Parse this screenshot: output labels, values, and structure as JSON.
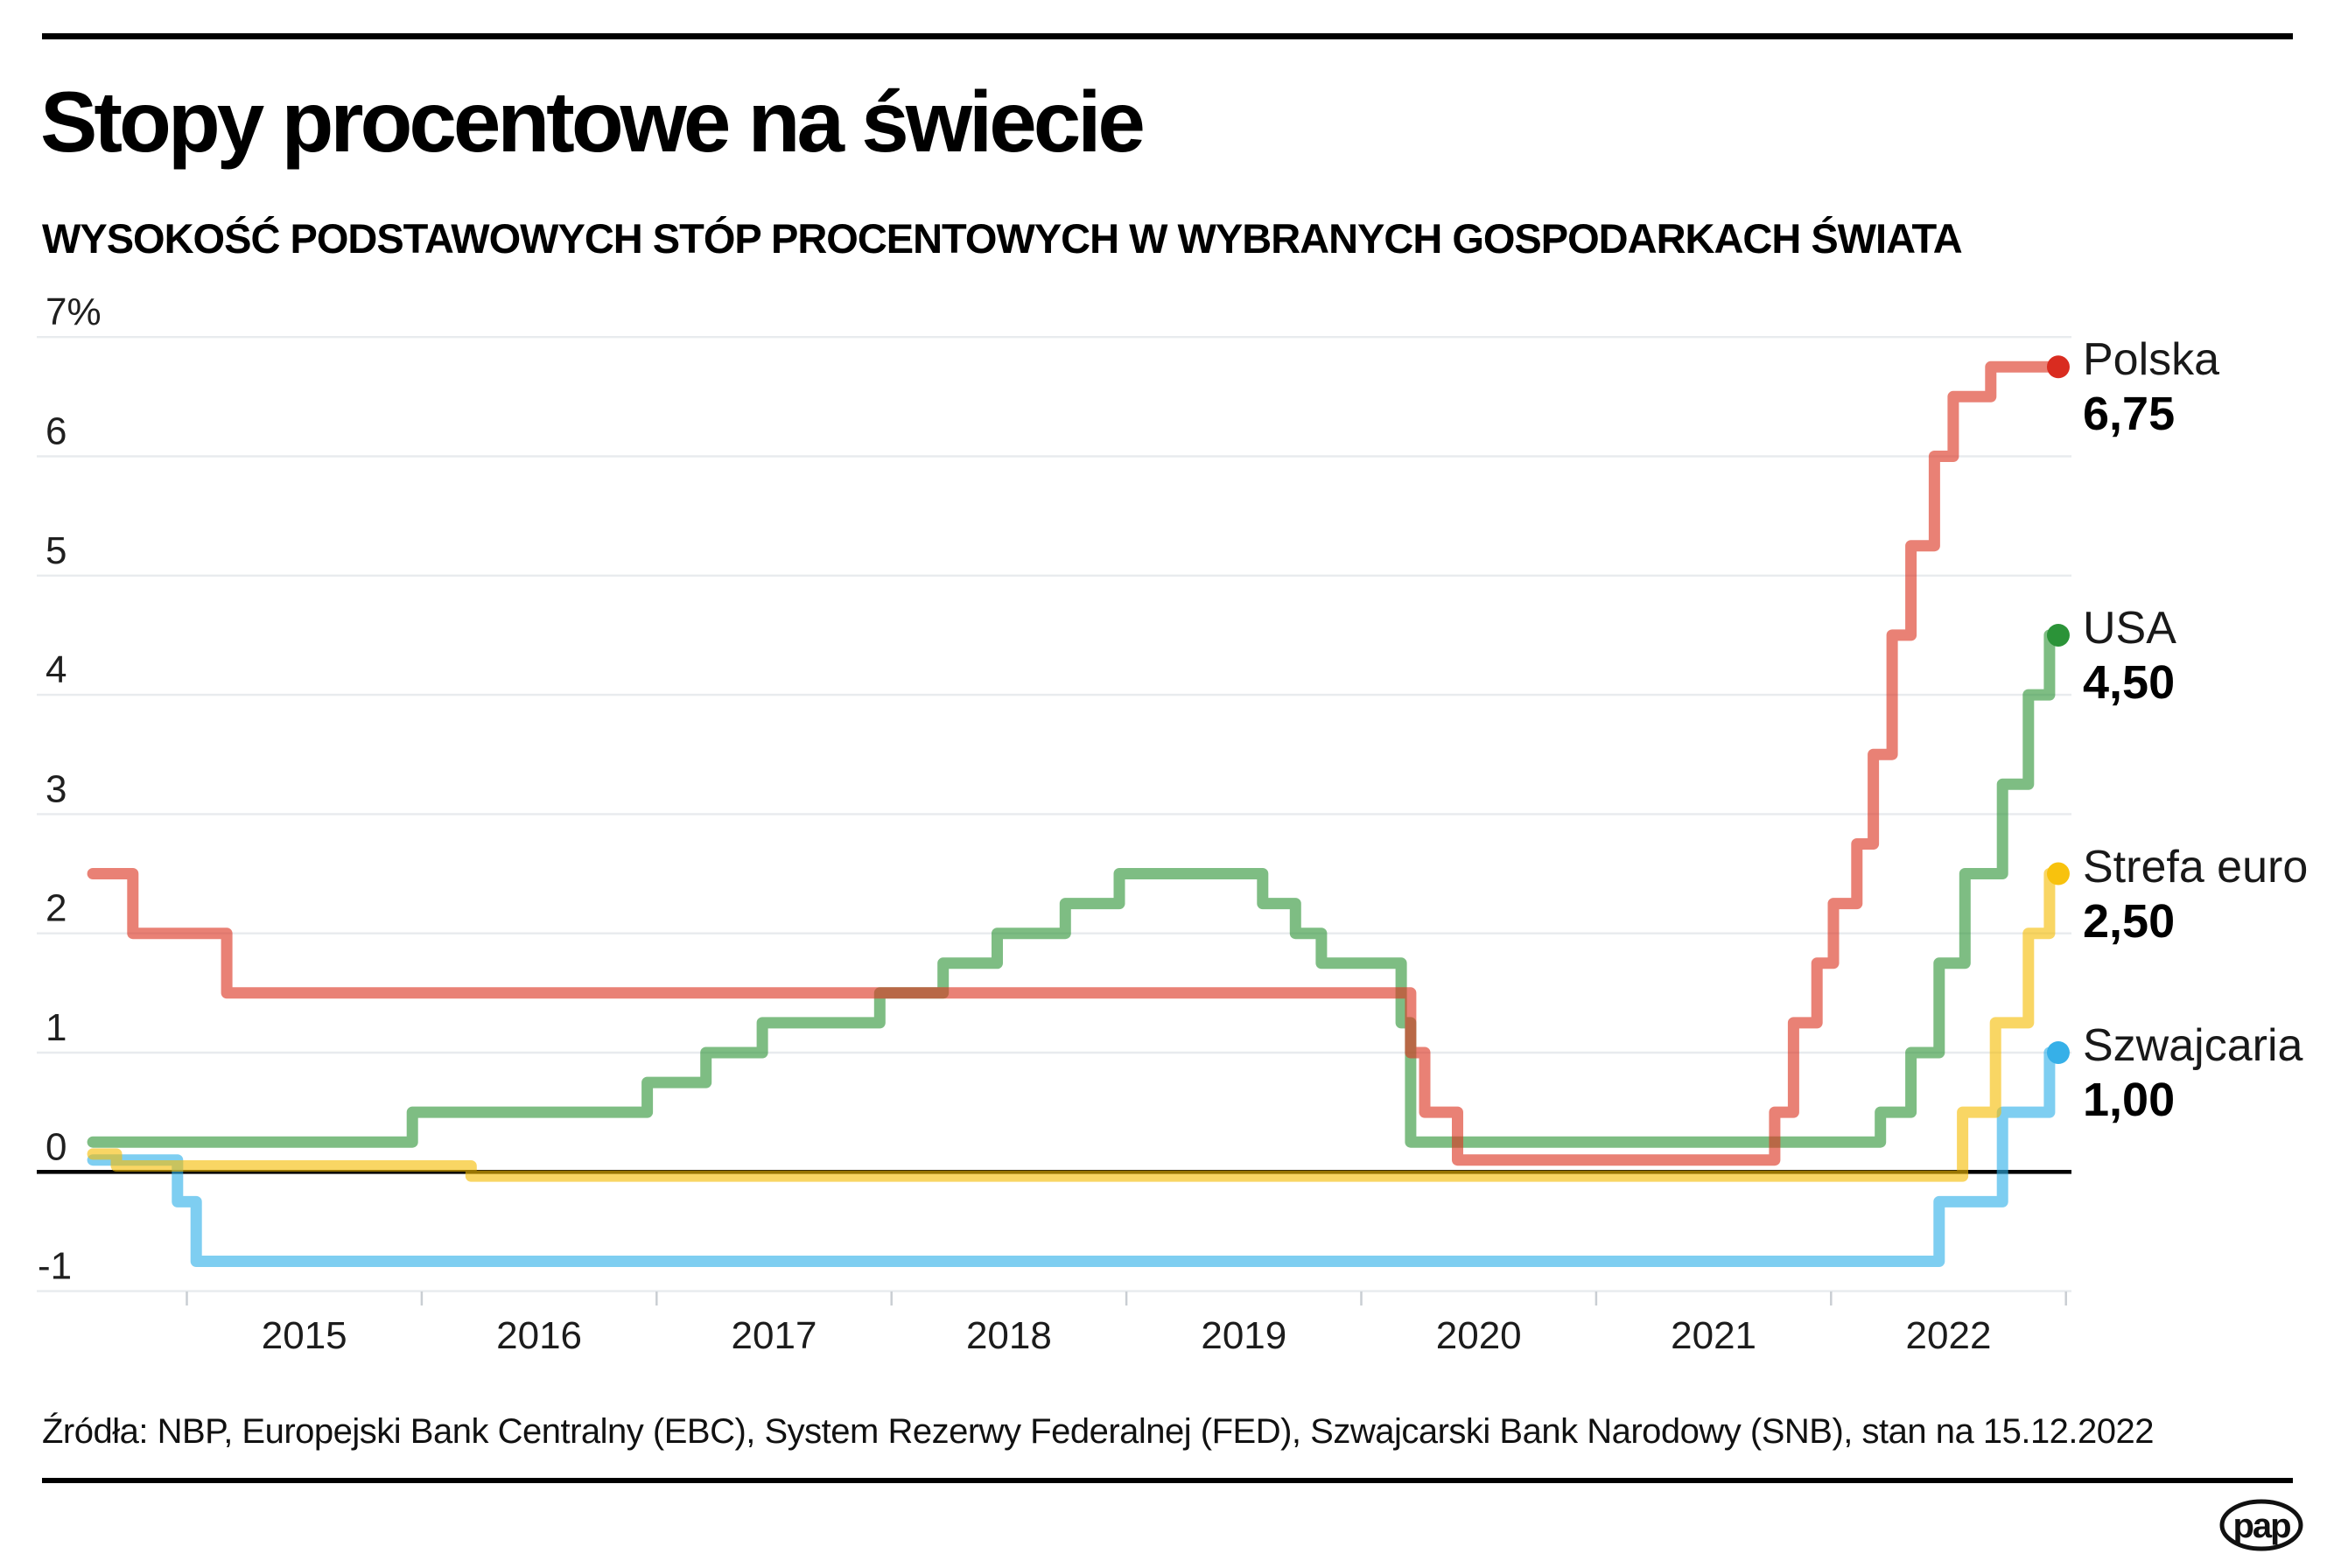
{
  "header": {
    "title": "Stopy procentowe na świecie",
    "subtitle": "WYSOKOŚĆ PODSTAWOWYCH STÓP PROCENTOWYCH W WYBRANYCH GOSPODARKACH ŚWIATA"
  },
  "chart_data": {
    "type": "line",
    "step": true,
    "title": "Stopy procentowe na świecie",
    "xlabel": "",
    "ylabel": "%",
    "x_range": [
      2014.6,
      2023.0
    ],
    "y_range": [
      -1,
      7
    ],
    "grid": true,
    "legend_position": "right",
    "as_of": "15.12.2022",
    "x_axis": {
      "year_labels": [
        "2015",
        "2016",
        "2017",
        "2018",
        "2019",
        "2020",
        "2021",
        "2022"
      ]
    },
    "y_axis": {
      "ticks": [
        {
          "value": 7,
          "label": "7%"
        },
        {
          "value": 6,
          "label": "6"
        },
        {
          "value": 5,
          "label": "5"
        },
        {
          "value": 4,
          "label": "4"
        },
        {
          "value": 3,
          "label": "3"
        },
        {
          "value": 2,
          "label": "2"
        },
        {
          "value": 1,
          "label": "1"
        },
        {
          "value": 0,
          "label": "0"
        },
        {
          "value": -1,
          "label": "-1"
        }
      ]
    },
    "t_end": 2022.96,
    "series": [
      {
        "id": "polska",
        "label": "Polska",
        "value_label": "6,75",
        "final_value": 6.75,
        "line_color": "#dc3420",
        "dot_color": "#d92c20",
        "points": [
          [
            2014.6,
            2.5
          ],
          [
            2014.77,
            2.0
          ],
          [
            2015.17,
            1.5
          ],
          [
            2020.21,
            1.0
          ],
          [
            2020.27,
            0.5
          ],
          [
            2020.41,
            0.1
          ],
          [
            2021.76,
            0.5
          ],
          [
            2021.84,
            1.25
          ],
          [
            2021.94,
            1.75
          ],
          [
            2022.01,
            2.25
          ],
          [
            2022.11,
            2.75
          ],
          [
            2022.18,
            3.5
          ],
          [
            2022.26,
            4.5
          ],
          [
            2022.34,
            5.25
          ],
          [
            2022.44,
            6.0
          ],
          [
            2022.52,
            6.5
          ],
          [
            2022.68,
            6.75
          ]
        ]
      },
      {
        "id": "usa",
        "label": "USA",
        "value_label": "4,50",
        "final_value": 4.5,
        "line_color": "#2e9437",
        "dot_color": "#2b9338",
        "points": [
          [
            2014.6,
            0.25
          ],
          [
            2015.96,
            0.5
          ],
          [
            2016.96,
            0.75
          ],
          [
            2017.21,
            1.0
          ],
          [
            2017.45,
            1.25
          ],
          [
            2017.95,
            1.5
          ],
          [
            2018.22,
            1.75
          ],
          [
            2018.45,
            2.0
          ],
          [
            2018.74,
            2.25
          ],
          [
            2018.97,
            2.5
          ],
          [
            2019.58,
            2.25
          ],
          [
            2019.72,
            2.0
          ],
          [
            2019.83,
            1.75
          ],
          [
            2020.17,
            1.25
          ],
          [
            2020.21,
            0.25
          ],
          [
            2022.21,
            0.5
          ],
          [
            2022.34,
            1.0
          ],
          [
            2022.46,
            1.75
          ],
          [
            2022.57,
            2.5
          ],
          [
            2022.73,
            3.25
          ],
          [
            2022.84,
            4.0
          ],
          [
            2022.93,
            4.5
          ]
        ]
      },
      {
        "id": "strefa-euro",
        "label": "Strefa euro",
        "value_label": "2,50",
        "final_value": 2.5,
        "line_color": "#f5bd05",
        "dot_color": "#f8c20d",
        "points": [
          [
            2014.6,
            0.15
          ],
          [
            2014.7,
            0.05
          ],
          [
            2016.21,
            0.0
          ],
          [
            2022.56,
            0.5
          ],
          [
            2022.7,
            1.25
          ],
          [
            2022.84,
            2.0
          ],
          [
            2022.93,
            2.5
          ]
        ]
      },
      {
        "id": "szwajcaria",
        "label": "Szwajcaria",
        "value_label": "1,00",
        "final_value": 1.0,
        "line_color": "#2fb0e8",
        "dot_color": "#36b0e8",
        "points": [
          [
            2014.6,
            0.1
          ],
          [
            2014.96,
            -0.25
          ],
          [
            2015.04,
            -0.75
          ],
          [
            2022.46,
            -0.25
          ],
          [
            2022.73,
            0.5
          ],
          [
            2022.93,
            1.0
          ]
        ]
      }
    ]
  },
  "footer": {
    "source": "Źródła: NBP, Europejski Bank Centralny (EBC), System Rezerwy Federalnej (FED), Szwajcarski Bank Narodowy (SNB), stan na 15.12.2022",
    "logo_text": "pap"
  }
}
